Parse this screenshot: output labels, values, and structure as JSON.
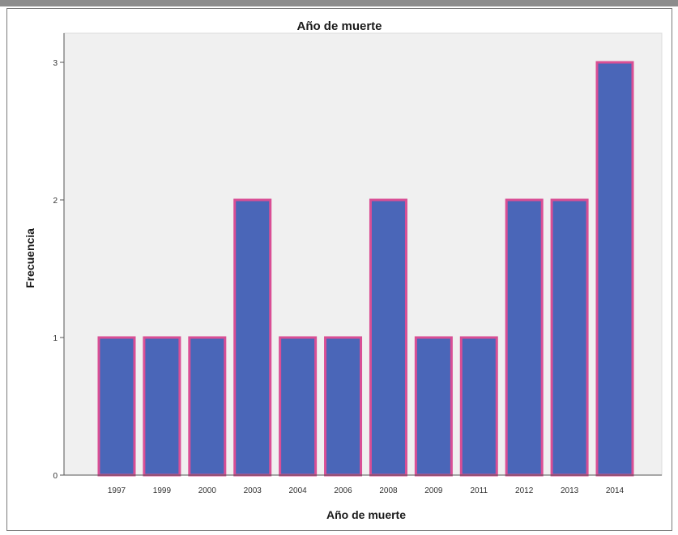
{
  "chart_data": {
    "type": "bar",
    "title": "Año de muerte",
    "xlabel": "Año de muerte",
    "ylabel": "Frecuencia",
    "categories": [
      "1997",
      "1999",
      "2000",
      "2003",
      "2004",
      "2006",
      "2008",
      "2009",
      "2011",
      "2012",
      "2013",
      "2014"
    ],
    "values": [
      1,
      1,
      1,
      2,
      1,
      1,
      2,
      1,
      1,
      2,
      2,
      3
    ],
    "ylim": [
      0,
      3
    ],
    "yticks": [
      "0",
      "1",
      "2",
      "3"
    ],
    "grid": false,
    "legend": "none",
    "colors": {
      "bar_fill": "#4a66b8",
      "bar_stroke": "#d94f95",
      "plot_background": "#f0f0f0",
      "axis": "#555555"
    }
  }
}
